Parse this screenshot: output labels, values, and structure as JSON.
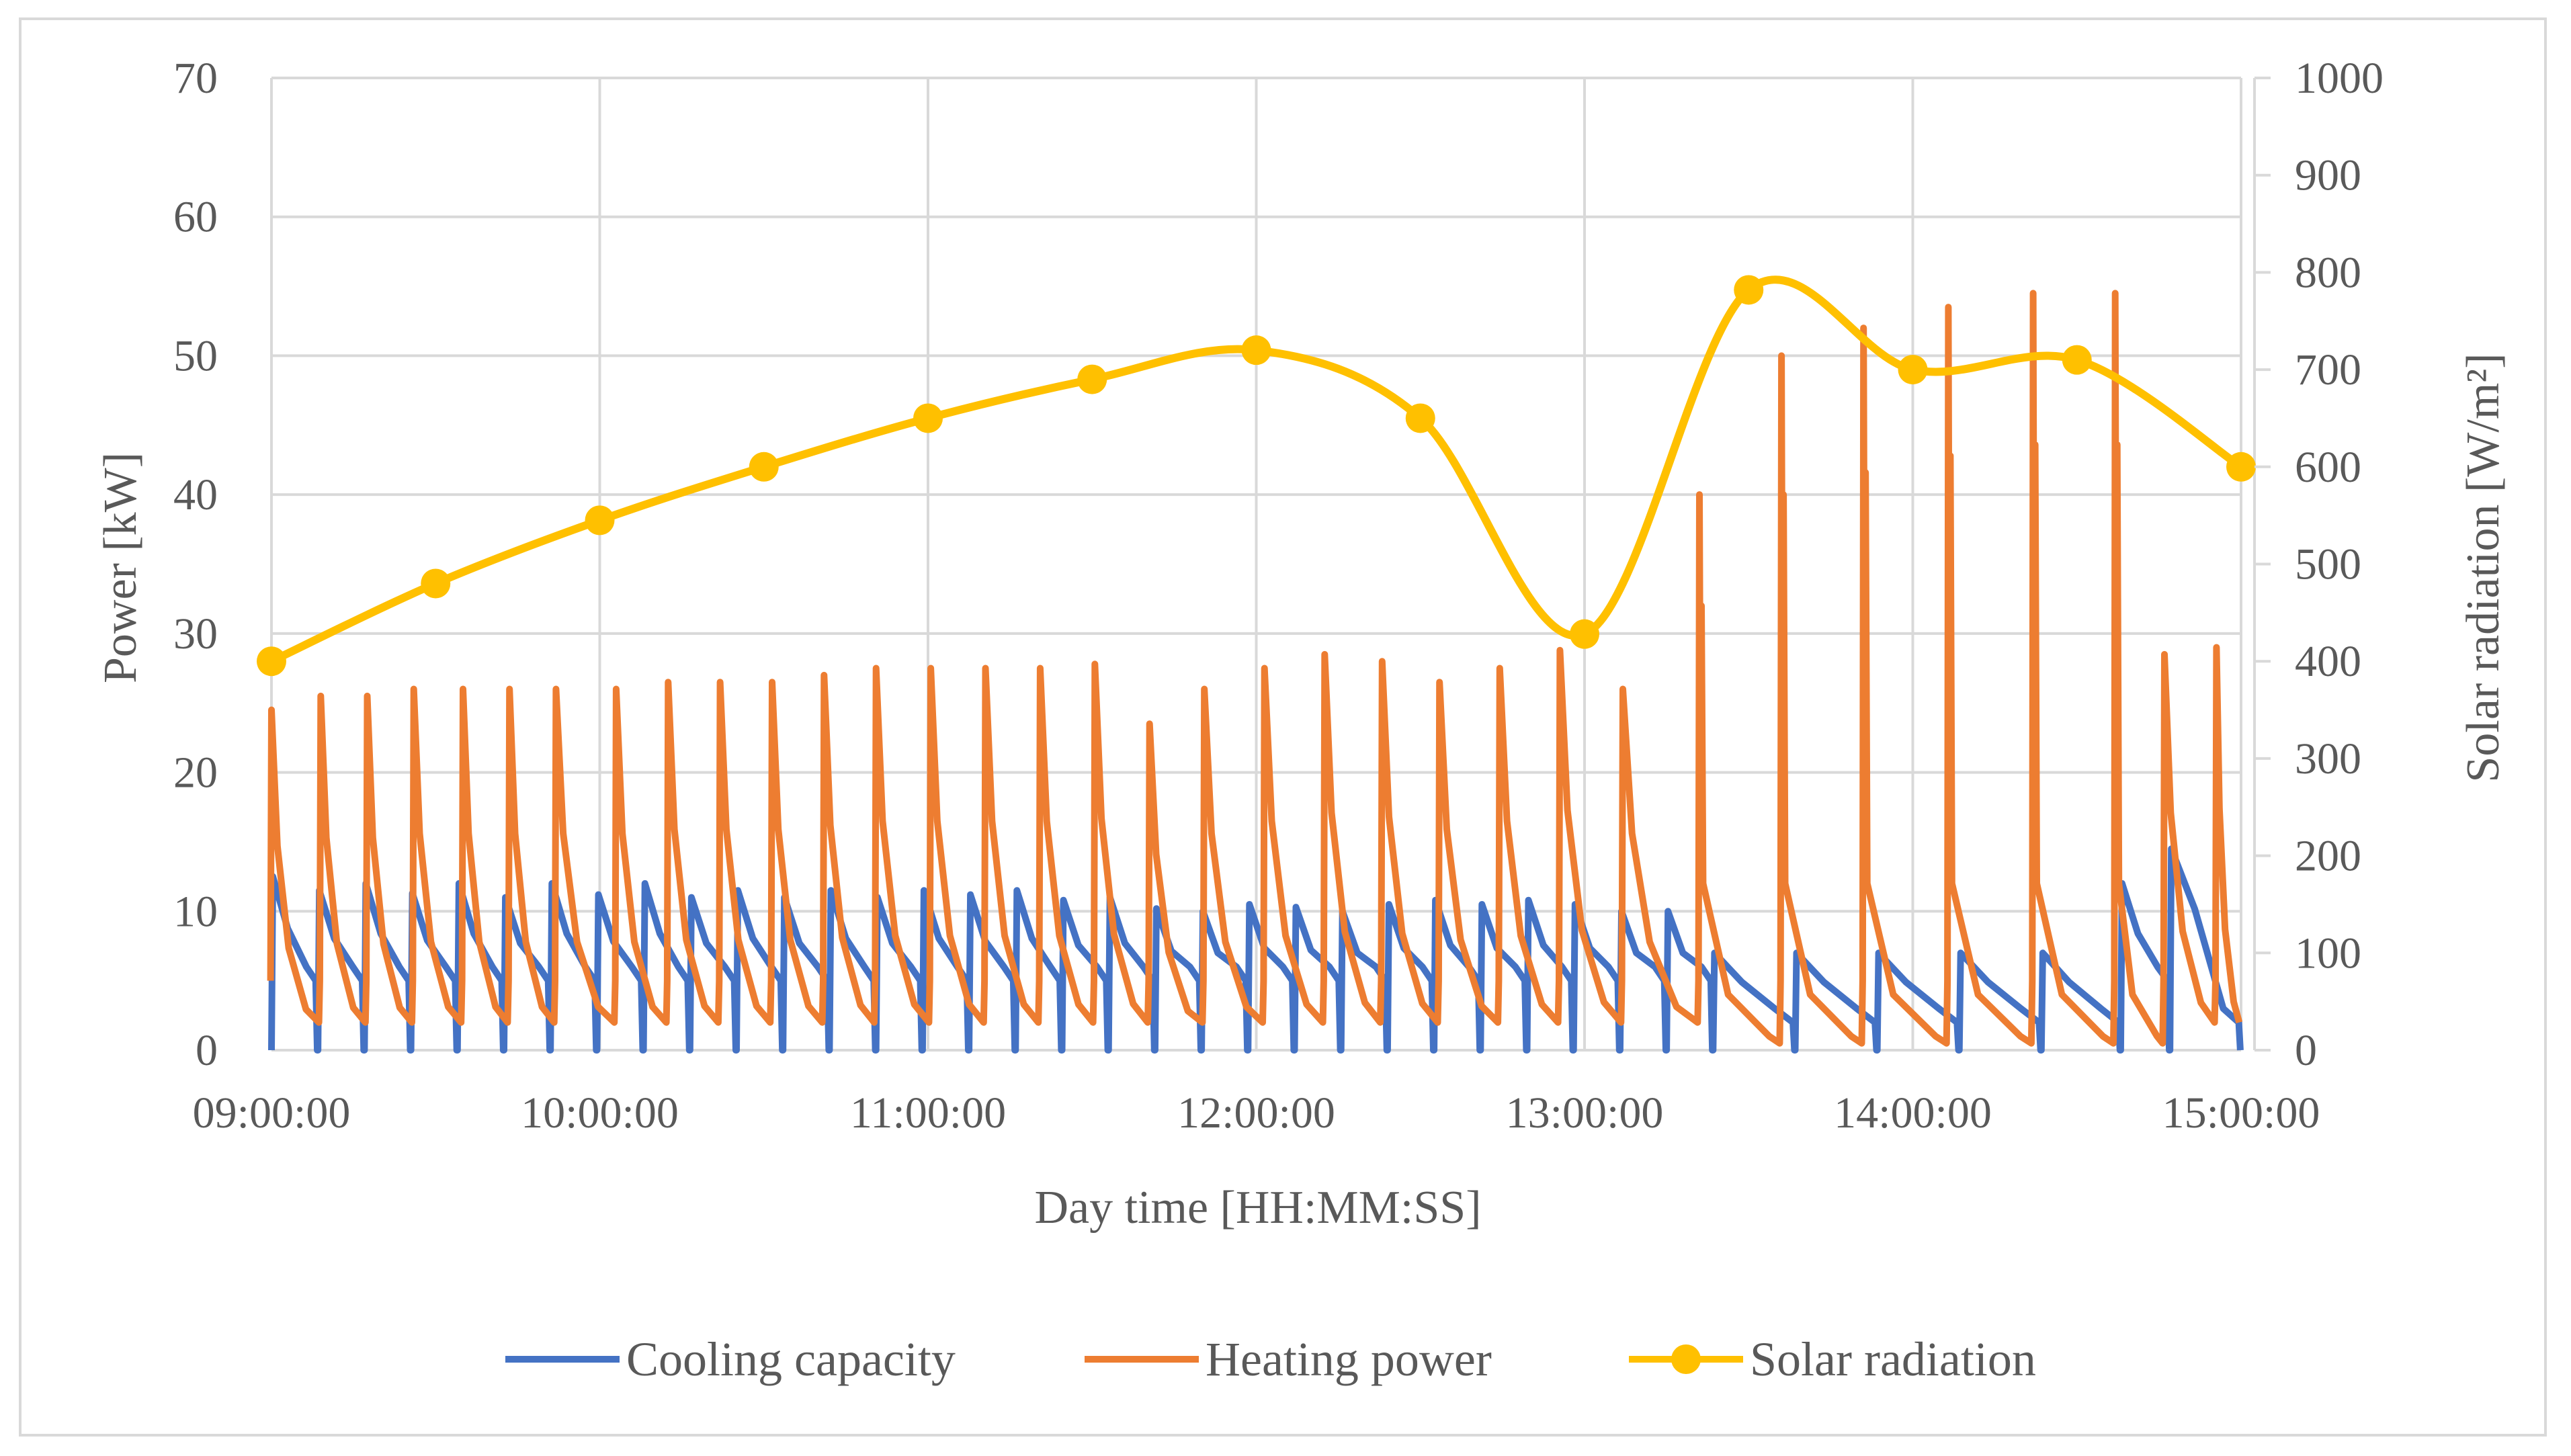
{
  "chart_data": {
    "type": "line",
    "xlabel": "Day time [HH:MM:SS]",
    "ylabel": "Power [kW]",
    "y2label": "Solar radiation [W/m²]",
    "x_ticks": [
      "09:00:00",
      "10:00:00",
      "11:00:00",
      "12:00:00",
      "13:00:00",
      "14:00:00",
      "15:00:00"
    ],
    "ylim": [
      0,
      70
    ],
    "y_ticks": [
      0,
      10,
      20,
      30,
      40,
      50,
      60,
      70
    ],
    "y2lim": [
      0,
      1000
    ],
    "y2_ticks": [
      0,
      100,
      200,
      300,
      400,
      500,
      600,
      700,
      800,
      900,
      1000
    ],
    "grid": true,
    "legend_position": "bottom",
    "series": [
      {
        "name": "Cooling capacity",
        "color": "#4472c4",
        "axis": "left",
        "pattern": "cyclic sawtooth, peaks ~10-14 kW, drops to 0 at each cycle",
        "cycles": [
          {
            "start": "09:00:00",
            "peak": 12.5
          },
          {
            "start": "09:08:30",
            "peak": 11.5
          },
          {
            "start": "09:17:00",
            "peak": 12.0
          },
          {
            "start": "09:25:30",
            "peak": 11.3
          },
          {
            "start": "09:34:00",
            "peak": 12.0
          },
          {
            "start": "09:42:30",
            "peak": 11.0
          },
          {
            "start": "09:51:00",
            "peak": 12.0
          },
          {
            "start": "09:59:30",
            "peak": 11.2
          },
          {
            "start": "10:08:00",
            "peak": 12.0
          },
          {
            "start": "10:16:30",
            "peak": 11.0
          },
          {
            "start": "10:25:00",
            "peak": 11.5
          },
          {
            "start": "10:33:30",
            "peak": 11.0
          },
          {
            "start": "10:42:00",
            "peak": 11.5
          },
          {
            "start": "10:50:30",
            "peak": 11.0
          },
          {
            "start": "10:59:00",
            "peak": 11.5
          },
          {
            "start": "11:07:30",
            "peak": 11.2
          },
          {
            "start": "11:16:00",
            "peak": 11.5
          },
          {
            "start": "11:24:30",
            "peak": 10.8
          },
          {
            "start": "11:33:00",
            "peak": 11.0
          },
          {
            "start": "11:41:30",
            "peak": 10.2
          },
          {
            "start": "11:50:00",
            "peak": 10.0
          },
          {
            "start": "11:58:30",
            "peak": 10.5
          },
          {
            "start": "12:07:00",
            "peak": 10.3
          },
          {
            "start": "12:15:30",
            "peak": 10.0
          },
          {
            "start": "12:24:00",
            "peak": 10.5
          },
          {
            "start": "12:32:30",
            "peak": 10.8
          },
          {
            "start": "12:41:00",
            "peak": 10.5
          },
          {
            "start": "12:49:30",
            "peak": 10.8
          },
          {
            "start": "12:58:00",
            "peak": 10.5
          },
          {
            "start": "13:06:30",
            "peak": 10.0
          },
          {
            "start": "13:15:00",
            "peak": 10.0
          },
          {
            "start": "13:23:30",
            "peak": 7.0
          },
          {
            "start": "13:38:30",
            "peak": 7.0
          },
          {
            "start": "13:53:30",
            "peak": 7.0
          },
          {
            "start": "14:08:30",
            "peak": 7.0
          },
          {
            "start": "14:23:30",
            "peak": 7.0
          },
          {
            "start": "14:38:00",
            "peak": 12.0
          },
          {
            "start": "14:47:00",
            "peak": 14.5
          }
        ]
      },
      {
        "name": "Heating power",
        "color": "#ed7d31",
        "axis": "left",
        "pattern": "cyclic spikes ~23-29 kW until 13:20, then larger spikes 40-55 kW",
        "peaks": [
          {
            "time": "09:00:00",
            "value": 24.5
          },
          {
            "time": "09:09:00",
            "value": 25.5
          },
          {
            "time": "09:17:30",
            "value": 25.5
          },
          {
            "time": "09:26:00",
            "value": 26.0
          },
          {
            "time": "09:35:00",
            "value": 26.0
          },
          {
            "time": "09:43:30",
            "value": 26.0
          },
          {
            "time": "09:52:00",
            "value": 26.0
          },
          {
            "time": "10:03:00",
            "value": 26.0
          },
          {
            "time": "10:12:30",
            "value": 26.5
          },
          {
            "time": "10:22:00",
            "value": 26.5
          },
          {
            "time": "10:31:30",
            "value": 26.5
          },
          {
            "time": "10:41:00",
            "value": 27.0
          },
          {
            "time": "10:50:30",
            "value": 27.5
          },
          {
            "time": "11:00:30",
            "value": 27.5
          },
          {
            "time": "11:10:30",
            "value": 27.5
          },
          {
            "time": "11:20:30",
            "value": 27.5
          },
          {
            "time": "11:30:30",
            "value": 27.8
          },
          {
            "time": "11:40:30",
            "value": 23.5
          },
          {
            "time": "11:50:30",
            "value": 26.0
          },
          {
            "time": "12:01:30",
            "value": 27.5
          },
          {
            "time": "12:12:30",
            "value": 28.5
          },
          {
            "time": "12:23:00",
            "value": 28.0
          },
          {
            "time": "12:33:30",
            "value": 26.5
          },
          {
            "time": "12:44:30",
            "value": 27.5
          },
          {
            "time": "12:55:30",
            "value": 28.8
          },
          {
            "time": "13:07:00",
            "value": 26.0
          },
          {
            "time": "13:21:00",
            "value": 40.0
          },
          {
            "time": "13:36:00",
            "value": 50.0
          },
          {
            "time": "13:51:00",
            "value": 52.0
          },
          {
            "time": "14:06:30",
            "value": 53.5
          },
          {
            "time": "14:22:00",
            "value": 54.5
          },
          {
            "time": "14:37:00",
            "value": 54.5
          },
          {
            "time": "14:46:00",
            "value": 28.5
          },
          {
            "time": "14:55:30",
            "value": 29.0
          }
        ]
      },
      {
        "name": "Solar radiation",
        "color": "#ffc000",
        "axis": "right",
        "marker": "circle",
        "points": [
          {
            "x": "09:00:00",
            "y": 400
          },
          {
            "x": "09:30:00",
            "y": 480
          },
          {
            "x": "10:00:00",
            "y": 545
          },
          {
            "x": "10:30:00",
            "y": 600
          },
          {
            "x": "11:00:00",
            "y": 650
          },
          {
            "x": "11:30:00",
            "y": 690
          },
          {
            "x": "12:00:00",
            "y": 720
          },
          {
            "x": "12:30:00",
            "y": 650
          },
          {
            "x": "13:00:00",
            "y": 428
          },
          {
            "x": "13:30:00",
            "y": 782
          },
          {
            "x": "14:00:00",
            "y": 700
          },
          {
            "x": "14:30:00",
            "y": 710
          },
          {
            "x": "15:00:00",
            "y": 600
          }
        ]
      }
    ]
  }
}
